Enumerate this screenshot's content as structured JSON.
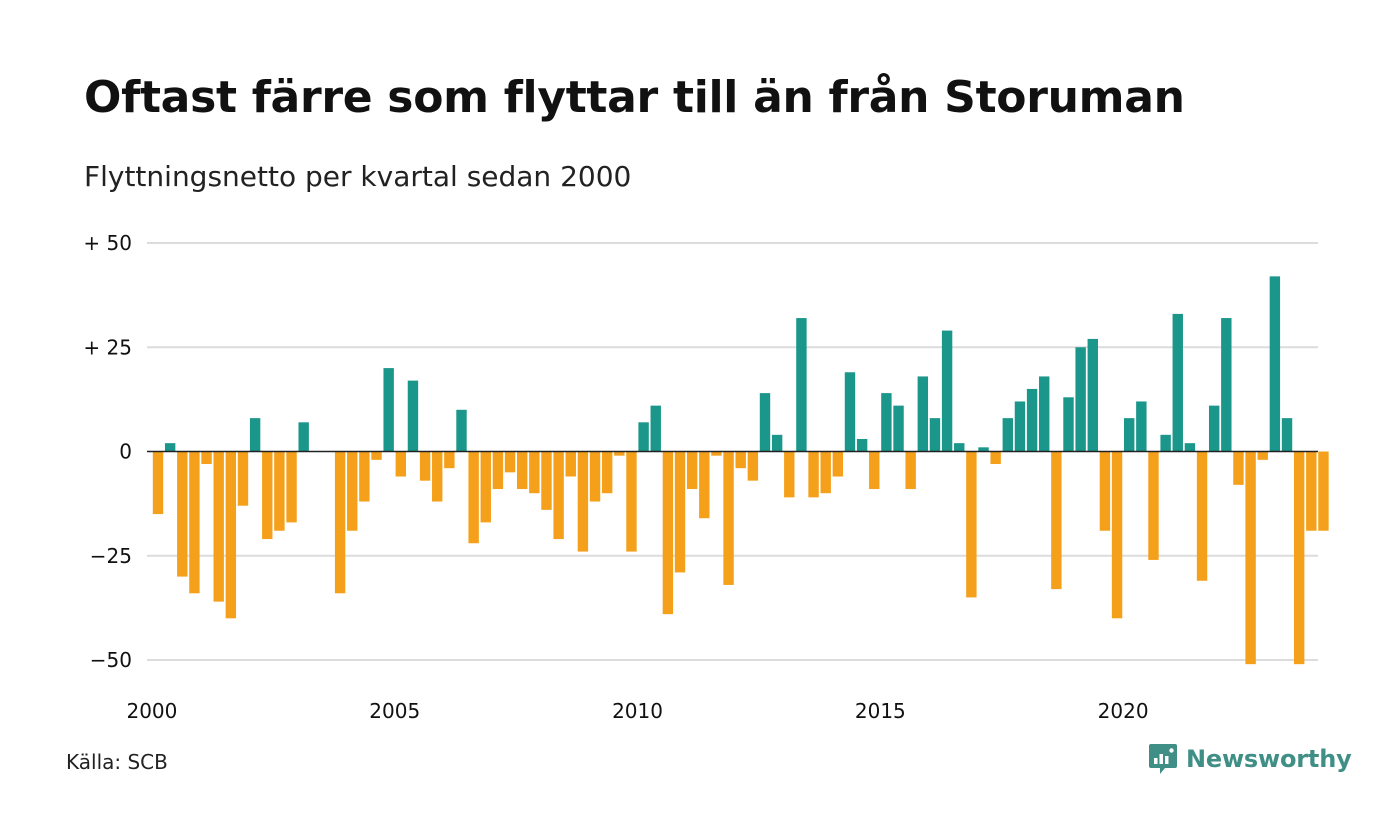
{
  "header": {
    "title": "Oftast färre som flyttar till än från Storuman",
    "subtitle": "Flyttningsnetto per kvartal sedan 2000"
  },
  "footer": {
    "source": "Källa: SCB",
    "brand": "Newsworthy",
    "brand_icon": "newsworthy-logo-icon"
  },
  "colors": {
    "positive": "#1a968a",
    "negative": "#f5a01a",
    "grid": "#dcdcdc",
    "brand": "#3f8f86"
  },
  "chart_data": {
    "type": "bar",
    "title": "Oftast färre som flyttar till än från Storuman",
    "subtitle": "Flyttningsnetto per kvartal sedan 2000",
    "xlabel": "",
    "ylabel": "",
    "ylim": [
      -50,
      50
    ],
    "grid": true,
    "legend": "none",
    "y_ticks": [
      {
        "value": 50,
        "label": "+ 50"
      },
      {
        "value": 25,
        "label": "+ 25"
      },
      {
        "value": 0,
        "label": "0"
      },
      {
        "value": -25,
        "label": "−25"
      },
      {
        "value": -50,
        "label": "−50"
      }
    ],
    "x_ticks": [
      {
        "quarter_index": 0,
        "label": "2000"
      },
      {
        "quarter_index": 20,
        "label": "2005"
      },
      {
        "quarter_index": 40,
        "label": "2010"
      },
      {
        "quarter_index": 60,
        "label": "2015"
      },
      {
        "quarter_index": 80,
        "label": "2020"
      }
    ],
    "categories": [
      "2000 K1",
      "2000 K2",
      "2000 K3",
      "2000 K4",
      "2001 K1",
      "2001 K2",
      "2001 K3",
      "2001 K4",
      "2002 K1",
      "2002 K2",
      "2002 K3",
      "2002 K4",
      "2003 K1",
      "2003 K2",
      "2003 K3",
      "2003 K4",
      "2004 K1",
      "2004 K2",
      "2004 K3",
      "2004 K4",
      "2005 K1",
      "2005 K2",
      "2005 K3",
      "2005 K4",
      "2006 K1",
      "2006 K2",
      "2006 K3",
      "2006 K4",
      "2007 K1",
      "2007 K2",
      "2007 K3",
      "2007 K4",
      "2008 K1",
      "2008 K2",
      "2008 K3",
      "2008 K4",
      "2009 K1",
      "2009 K2",
      "2009 K3",
      "2009 K4",
      "2010 K1",
      "2010 K2",
      "2010 K3",
      "2010 K4",
      "2011 K1",
      "2011 K2",
      "2011 K3",
      "2011 K4",
      "2012 K1",
      "2012 K2",
      "2012 K3",
      "2012 K4",
      "2013 K1",
      "2013 K2",
      "2013 K3",
      "2013 K4",
      "2014 K1",
      "2014 K2",
      "2014 K3",
      "2014 K4",
      "2015 K1",
      "2015 K2",
      "2015 K3",
      "2015 K4",
      "2016 K1",
      "2016 K2",
      "2016 K3",
      "2016 K4",
      "2017 K1",
      "2017 K2",
      "2017 K3",
      "2017 K4",
      "2018 K1",
      "2018 K2",
      "2018 K3",
      "2018 K4",
      "2019 K1",
      "2019 K2",
      "2019 K3",
      "2019 K4",
      "2020 K1",
      "2020 K2",
      "2020 K3",
      "2020 K4",
      "2021 K1",
      "2021 K2",
      "2021 K3",
      "2021 K4",
      "2022 K1",
      "2022 K2",
      "2022 K3",
      "2022 K4",
      "2023 K1",
      "2023 K2",
      "2023 K3",
      "2023 K4",
      "2024 K1"
    ],
    "values": [
      -15,
      2,
      -30,
      -34,
      -3,
      -36,
      -40,
      -13,
      8,
      -21,
      -19,
      -17,
      7,
      0,
      0,
      -34,
      -19,
      -12,
      -2,
      20,
      -6,
      17,
      -7,
      -12,
      -4,
      10,
      -22,
      -17,
      -9,
      -5,
      -9,
      -10,
      -14,
      -21,
      -6,
      -24,
      -12,
      -10,
      -1,
      -24,
      7,
      11,
      -39,
      -29,
      -9,
      -16,
      -1,
      -32,
      -4,
      -7,
      14,
      4,
      -11,
      32,
      -11,
      -10,
      -6,
      19,
      3,
      -9,
      14,
      11,
      -9,
      18,
      8,
      29,
      2,
      -35,
      1,
      -3,
      8,
      12,
      15,
      18,
      -33,
      13,
      25,
      27,
      -19,
      -40,
      8,
      12,
      -26,
      4,
      33,
      2,
      -31,
      11,
      32,
      -8,
      -51,
      -2,
      42,
      8,
      -51,
      -19,
      -19
    ]
  }
}
